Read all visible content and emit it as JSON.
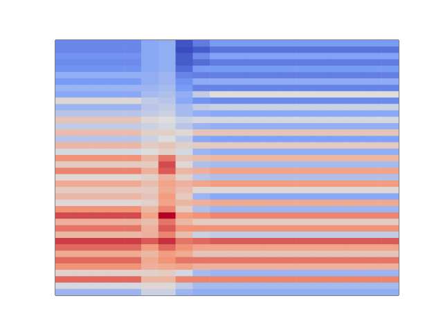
{
  "chart_data": {
    "type": "heatmap",
    "tick_labels": false,
    "xlim": [
      0,
      20
    ],
    "ylim": [
      0,
      40
    ],
    "color_range": [
      1.0,
      9.4
    ],
    "cells": [
      [
        2.5,
        2.5,
        2.5,
        2.5,
        2.5,
        3.4,
        3.6,
        1.2,
        2.2,
        3.0,
        3.0,
        3.0,
        3.0,
        3.0,
        3.0,
        3.0,
        3.0,
        3.0,
        3.0,
        3.0
      ],
      [
        2.5,
        2.5,
        2.5,
        2.5,
        2.5,
        3.4,
        3.6,
        1.0,
        1.4,
        2.0,
        2.0,
        2.0,
        2.0,
        2.0,
        2.0,
        2.0,
        2.0,
        2.0,
        2.0,
        2.0
      ],
      [
        2.8,
        2.8,
        2.8,
        2.8,
        2.8,
        3.4,
        3.6,
        1.4,
        2.6,
        3.2,
        3.2,
        3.2,
        3.2,
        3.2,
        3.2,
        3.2,
        3.2,
        3.2,
        3.2,
        3.2
      ],
      [
        2.6,
        2.6,
        2.6,
        2.6,
        2.6,
        3.4,
        3.6,
        1.4,
        1.8,
        2.2,
        2.2,
        2.2,
        2.2,
        2.2,
        2.2,
        2.2,
        2.2,
        2.2,
        2.2,
        2.2
      ],
      [
        2.8,
        2.8,
        2.8,
        2.8,
        2.8,
        3.4,
        3.6,
        1.8,
        3.0,
        3.0,
        3.0,
        3.0,
        3.0,
        3.0,
        3.0,
        3.0,
        3.0,
        3.0,
        3.0,
        3.0
      ],
      [
        3.6,
        3.6,
        3.6,
        3.6,
        3.6,
        3.6,
        3.8,
        2.4,
        2.3,
        2.3,
        2.3,
        2.3,
        2.3,
        2.3,
        2.3,
        2.3,
        2.3,
        2.3,
        2.3,
        2.3
      ],
      [
        3.0,
        3.0,
        3.0,
        3.0,
        3.0,
        3.6,
        3.8,
        2.8,
        3.5,
        3.5,
        3.5,
        3.5,
        3.5,
        3.5,
        3.5,
        3.5,
        3.5,
        3.5,
        3.5,
        3.5
      ],
      [
        3.8,
        3.8,
        3.8,
        3.8,
        3.8,
        3.8,
        4.0,
        3.0,
        2.4,
        2.4,
        2.4,
        2.4,
        2.4,
        2.4,
        2.4,
        2.4,
        2.4,
        2.4,
        2.4,
        2.4
      ],
      [
        3.4,
        3.4,
        3.4,
        3.4,
        3.4,
        4.0,
        4.2,
        3.6,
        4.6,
        5.2,
        5.2,
        5.2,
        5.2,
        5.2,
        5.2,
        5.2,
        5.2,
        5.2,
        5.2,
        5.2
      ],
      [
        5.4,
        5.4,
        5.4,
        5.4,
        5.4,
        4.6,
        4.4,
        3.4,
        2.8,
        2.6,
        2.6,
        2.6,
        2.6,
        2.6,
        2.6,
        2.6,
        2.6,
        2.6,
        2.6,
        2.6
      ],
      [
        3.8,
        3.8,
        3.8,
        3.8,
        3.8,
        4.4,
        4.6,
        4.0,
        4.6,
        4.8,
        4.8,
        4.8,
        4.8,
        4.8,
        4.8,
        4.8,
        4.8,
        4.8,
        4.8,
        4.8
      ],
      [
        4.4,
        4.4,
        4.4,
        4.4,
        4.4,
        4.6,
        4.8,
        4.0,
        3.6,
        3.4,
        3.4,
        3.4,
        3.4,
        3.4,
        3.4,
        3.4,
        3.4,
        3.4,
        3.4,
        3.4
      ],
      [
        6.0,
        6.0,
        6.0,
        6.0,
        6.0,
        5.4,
        5.2,
        4.8,
        5.0,
        5.0,
        5.0,
        5.0,
        5.0,
        5.0,
        5.0,
        5.0,
        5.0,
        5.0,
        5.0,
        5.0
      ],
      [
        4.6,
        4.6,
        4.6,
        4.6,
        4.6,
        4.8,
        5.0,
        4.4,
        3.8,
        3.6,
        3.6,
        3.6,
        3.6,
        3.6,
        3.6,
        3.6,
        3.6,
        3.6,
        3.6,
        3.6
      ],
      [
        6.2,
        6.2,
        6.2,
        6.2,
        6.2,
        5.6,
        5.6,
        5.4,
        6.0,
        6.0,
        6.0,
        6.0,
        6.0,
        6.0,
        6.0,
        6.0,
        6.0,
        6.0,
        6.0,
        6.0
      ],
      [
        4.4,
        4.4,
        4.4,
        4.4,
        4.4,
        4.8,
        5.2,
        4.6,
        3.4,
        3.2,
        3.2,
        3.2,
        3.2,
        3.2,
        3.2,
        3.2,
        3.2,
        3.2,
        3.2,
        3.2
      ],
      [
        6.4,
        6.4,
        6.4,
        6.4,
        6.4,
        5.8,
        6.0,
        5.6,
        5.8,
        5.8,
        5.8,
        5.8,
        5.8,
        5.8,
        5.8,
        5.8,
        5.8,
        5.8,
        5.8,
        5.8
      ],
      [
        5.0,
        5.0,
        5.0,
        5.0,
        5.0,
        5.2,
        5.6,
        5.0,
        3.8,
        3.6,
        3.6,
        3.6,
        3.6,
        3.6,
        3.6,
        3.6,
        3.6,
        3.6,
        3.6,
        3.6
      ],
      [
        7.4,
        7.4,
        7.4,
        7.4,
        7.4,
        6.4,
        7.8,
        6.0,
        6.2,
        6.4,
        6.4,
        6.4,
        6.4,
        6.4,
        6.4,
        6.4,
        6.4,
        6.4,
        6.4,
        6.4
      ],
      [
        5.8,
        5.8,
        5.8,
        5.8,
        5.8,
        5.8,
        8.4,
        5.4,
        4.2,
        4.0,
        4.0,
        4.0,
        4.0,
        4.0,
        4.0,
        4.0,
        4.0,
        4.0,
        4.0,
        4.0
      ],
      [
        7.6,
        7.6,
        7.6,
        7.6,
        7.6,
        6.6,
        8.2,
        6.4,
        6.6,
        7.0,
        7.0,
        7.0,
        7.0,
        7.0,
        7.0,
        7.0,
        7.0,
        7.0,
        7.0,
        7.0
      ],
      [
        5.4,
        5.4,
        5.4,
        5.4,
        5.4,
        5.6,
        6.6,
        5.6,
        4.4,
        4.2,
        4.2,
        4.2,
        4.2,
        4.2,
        4.2,
        4.2,
        4.2,
        4.2,
        4.2,
        4.2
      ],
      [
        6.8,
        6.8,
        6.8,
        6.8,
        6.8,
        6.2,
        7.0,
        6.6,
        7.0,
        7.2,
        7.2,
        7.2,
        7.2,
        7.2,
        7.2,
        7.2,
        7.2,
        7.2,
        7.2,
        7.2
      ],
      [
        5.8,
        5.8,
        5.8,
        5.8,
        5.8,
        5.8,
        6.8,
        6.2,
        5.4,
        5.4,
        5.4,
        5.4,
        5.4,
        5.4,
        5.4,
        5.4,
        5.4,
        5.4,
        5.4,
        5.4
      ],
      [
        6.4,
        6.4,
        6.4,
        6.4,
        6.4,
        6.0,
        7.2,
        5.8,
        3.8,
        3.4,
        3.4,
        3.4,
        3.4,
        3.4,
        3.4,
        3.4,
        3.4,
        3.4,
        3.4,
        3.4
      ],
      [
        5.4,
        5.4,
        5.4,
        5.4,
        5.4,
        5.6,
        7.0,
        6.4,
        6.6,
        6.8,
        6.8,
        6.8,
        6.8,
        6.8,
        6.8,
        6.8,
        6.8,
        6.8,
        6.8,
        6.8
      ],
      [
        7.4,
        7.4,
        7.4,
        7.4,
        7.4,
        6.4,
        7.6,
        5.8,
        4.2,
        3.8,
        3.8,
        3.8,
        3.8,
        3.8,
        3.8,
        3.8,
        3.8,
        3.8,
        3.8,
        3.8
      ],
      [
        8.4,
        8.4,
        8.4,
        8.4,
        8.4,
        7.0,
        9.4,
        7.2,
        7.4,
        7.6,
        7.6,
        7.6,
        7.6,
        7.6,
        7.6,
        7.6,
        7.6,
        7.6,
        7.6,
        7.6
      ],
      [
        6.6,
        6.6,
        6.6,
        6.6,
        6.6,
        6.2,
        7.8,
        6.4,
        5.8,
        5.8,
        5.8,
        5.8,
        5.8,
        5.8,
        5.8,
        5.8,
        5.8,
        5.8,
        5.8,
        5.8
      ],
      [
        7.8,
        7.8,
        7.8,
        7.8,
        7.8,
        6.6,
        8.2,
        7.4,
        7.4,
        7.4,
        7.4,
        7.4,
        7.4,
        7.4,
        7.4,
        7.4,
        7.4,
        7.4,
        7.4,
        7.4
      ],
      [
        6.4,
        6.4,
        6.4,
        6.4,
        6.4,
        6.6,
        7.6,
        6.2,
        4.8,
        4.6,
        4.6,
        4.6,
        4.6,
        4.6,
        4.6,
        4.6,
        4.6,
        4.6,
        4.6,
        4.6
      ],
      [
        8.6,
        8.6,
        8.6,
        8.6,
        8.6,
        8.2,
        8.8,
        7.8,
        8.0,
        8.2,
        8.2,
        8.2,
        8.2,
        8.2,
        8.2,
        8.2,
        8.2,
        8.2,
        8.2,
        8.2
      ],
      [
        8.0,
        8.0,
        8.0,
        8.0,
        8.0,
        7.2,
        8.0,
        7.4,
        7.0,
        7.0,
        7.0,
        7.0,
        7.0,
        7.0,
        7.0,
        7.0,
        7.0,
        7.0,
        7.0,
        7.0
      ],
      [
        6.8,
        6.8,
        6.8,
        6.8,
        6.8,
        6.4,
        7.2,
        6.8,
        6.0,
        6.0,
        6.0,
        6.0,
        6.0,
        6.0,
        6.0,
        6.0,
        6.0,
        6.0,
        6.0,
        6.0
      ],
      [
        8.0,
        8.0,
        8.0,
        8.0,
        8.0,
        6.8,
        7.4,
        7.8,
        7.8,
        7.8,
        7.8,
        7.8,
        7.8,
        7.8,
        7.8,
        7.8,
        7.8,
        7.8,
        7.8,
        7.8
      ],
      [
        7.4,
        7.4,
        7.4,
        7.4,
        7.4,
        6.6,
        6.8,
        7.0,
        6.6,
        6.6,
        6.6,
        6.6,
        6.6,
        6.6,
        6.6,
        6.6,
        6.6,
        6.6,
        6.6,
        6.6
      ],
      [
        5.6,
        5.6,
        5.6,
        5.6,
        5.6,
        5.6,
        5.8,
        5.0,
        4.0,
        3.8,
        3.8,
        3.8,
        3.8,
        3.8,
        3.8,
        3.8,
        3.8,
        3.8,
        3.8,
        3.8
      ],
      [
        8.0,
        8.0,
        8.0,
        8.0,
        8.0,
        6.4,
        6.4,
        7.6,
        7.6,
        7.6,
        7.6,
        7.6,
        7.6,
        7.6,
        7.6,
        7.6,
        7.6,
        7.6,
        7.6,
        7.6
      ],
      [
        5.0,
        5.0,
        5.0,
        5.0,
        5.0,
        5.4,
        5.4,
        4.6,
        4.0,
        4.0,
        4.0,
        4.0,
        4.0,
        4.0,
        4.0,
        4.0,
        4.0,
        4.0,
        4.0,
        4.0
      ],
      [
        3.8,
        3.8,
        3.8,
        3.8,
        3.8,
        4.8,
        4.8,
        3.8,
        3.6,
        3.6,
        3.6,
        3.6,
        3.6,
        3.6,
        3.6,
        3.6,
        3.6,
        3.6,
        3.6,
        3.6
      ]
    ]
  }
}
